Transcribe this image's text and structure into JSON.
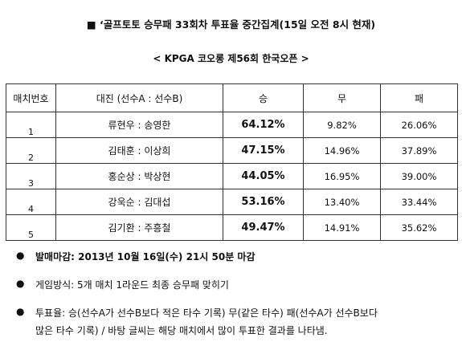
{
  "header": {
    "title": "■ ‘골프토토 승무패 33회차 투표율 중간집계(15일 오전 8시 현재)",
    "subtitle": "< KPGA 코오롱 제56회 한국오픈 >"
  },
  "table": {
    "headers": [
      "매치번호",
      "대진 (선수A : 선수B)",
      "승",
      "무",
      "패"
    ],
    "rows": [
      {
        "no": "1",
        "match": "류현우 : 송영한",
        "win": "64.12%",
        "draw": "9.82%",
        "lose": "26.06%"
      },
      {
        "no": "2",
        "match": "김태훈 : 이상희",
        "win": "47.15%",
        "draw": "14.96%",
        "lose": "37.89%"
      },
      {
        "no": "3",
        "match": "홍순상 : 박상현",
        "win": "44.05%",
        "draw": "16.95%",
        "lose": "39.00%"
      },
      {
        "no": "4",
        "match": "강욱순 : 김대섭",
        "win": "53.16%",
        "draw": "13.40%",
        "lose": "33.44%"
      },
      {
        "no": "5",
        "match": "김기환 : 주흥철",
        "win": "49.47%",
        "draw": "14.91%",
        "lose": "35.62%"
      }
    ]
  },
  "notes": {
    "bullet": "●",
    "deadline": "발매마감: 2013년 10월 16일(수) 21시 50분 마감",
    "method": "게임방식: 5개 매치 1라운드 최종 승무패 맞히기",
    "vote_line1": "투표율: 승(선수A가 선수B보다 적은 타수 기록) 무(같은 타수) 패(선수A가 선수B보다",
    "vote_line2": "많은 타수 기록) / 바탕 글씨는 해당 매치에서 많이 투표한 결과를 나타냄."
  }
}
